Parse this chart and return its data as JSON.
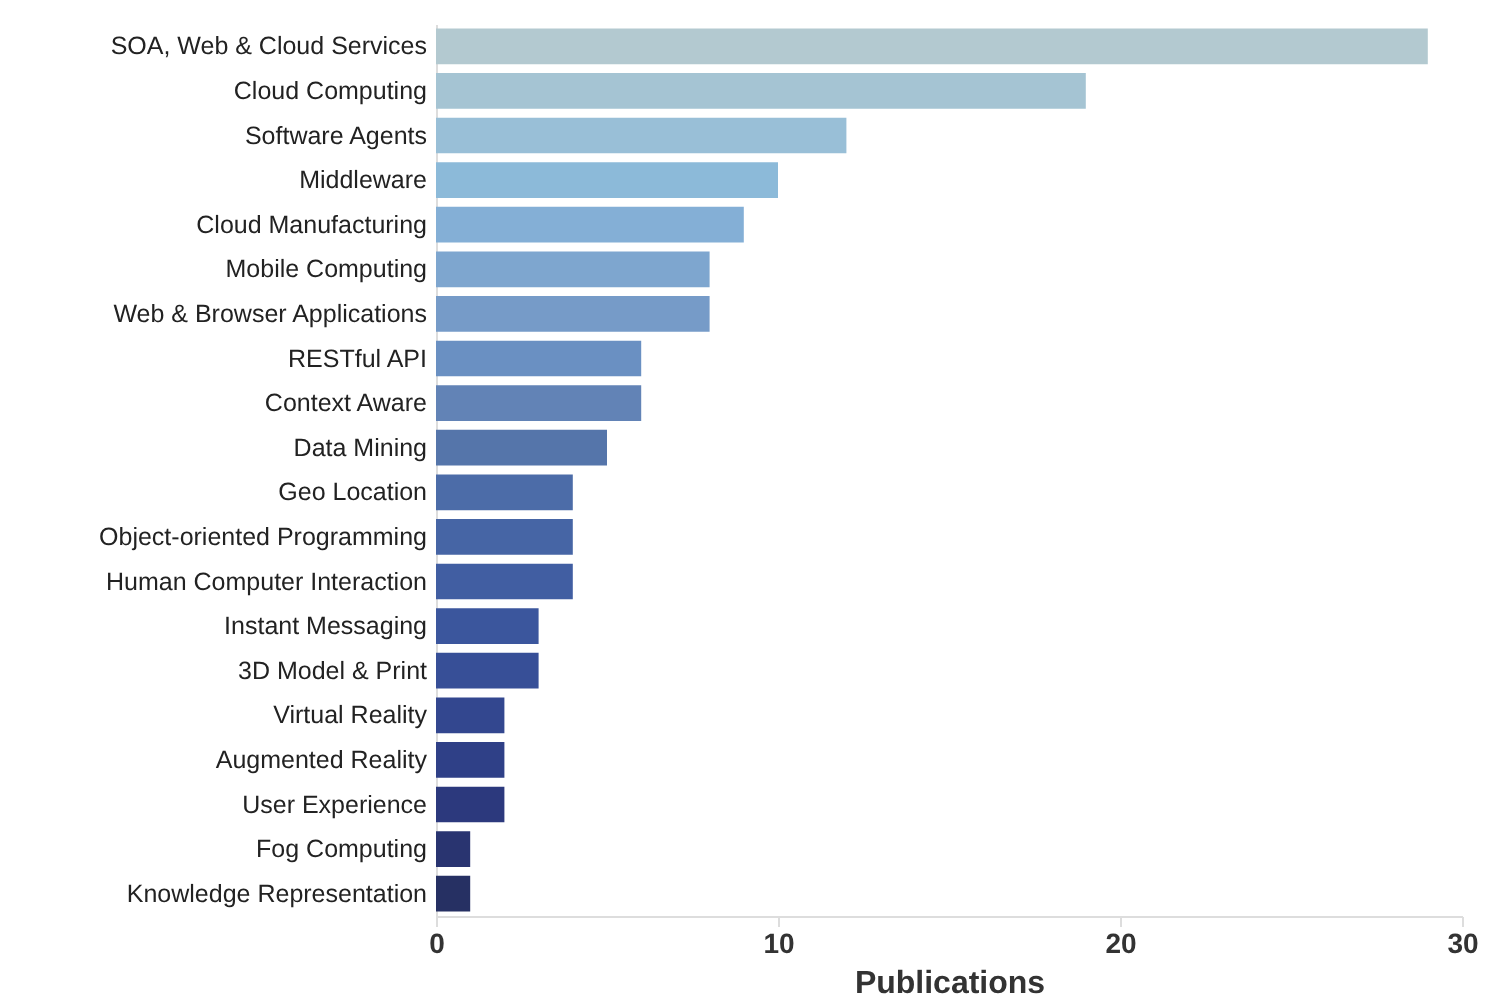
{
  "chart_data": {
    "type": "bar",
    "orientation": "horizontal",
    "xlabel": "Publications",
    "categories": [
      "SOA, Web & Cloud Services",
      "Cloud Computing",
      "Software Agents",
      "Middleware",
      "Cloud Manufacturing",
      "Mobile Computing",
      "Web & Browser Applications",
      "RESTful API",
      "Context Aware",
      "Data Mining",
      "Geo Location",
      "Object-oriented Programming",
      "Human Computer Interaction",
      "Instant Messaging",
      "3D Model & Print",
      "Virtual Reality",
      "Augmented Reality",
      "User Experience",
      "Fog Computing",
      "Knowledge Representation"
    ],
    "values": [
      29,
      19,
      12,
      10,
      9,
      8,
      8,
      6,
      6,
      5,
      4,
      4,
      4,
      3,
      3,
      2,
      2,
      2,
      1,
      1
    ],
    "colors": [
      "#b3c9d0",
      "#a5c4d3",
      "#99bfd7",
      "#8cbad9",
      "#84afd6",
      "#7ea6cf",
      "#769bc8",
      "#6a90c2",
      "#6283b6",
      "#5575aa",
      "#4c6ca8",
      "#4665a5",
      "#415ea2",
      "#3b569d",
      "#374f97",
      "#33478f",
      "#2f4087",
      "#2c397d",
      "#293470",
      "#263063"
    ],
    "xlim": [
      0,
      30
    ],
    "xticks": [
      0,
      10,
      20,
      30
    ],
    "grid": false
  }
}
